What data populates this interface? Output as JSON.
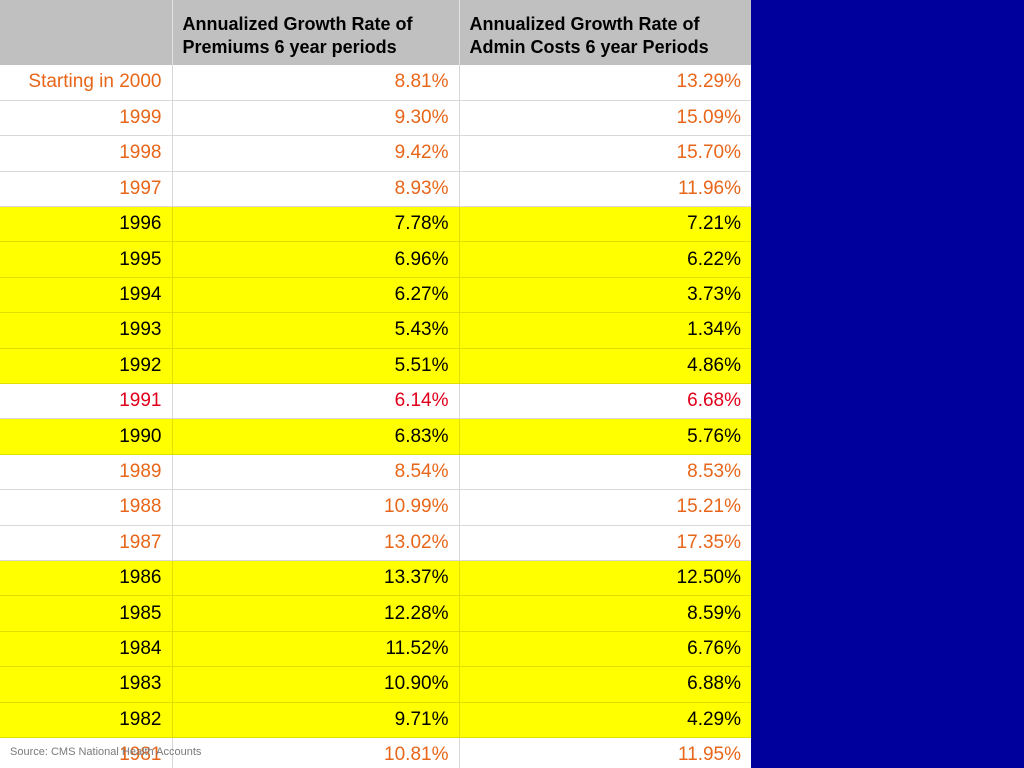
{
  "table": {
    "headers": [
      "",
      "Annualized Growth Rate of Premiums 6 year periods",
      "Annualized Growth Rate of Admin Costs 6 year Periods"
    ],
    "rows": [
      {
        "period": "Starting in 2000",
        "premiums": "8.81%",
        "admin": "13.29%",
        "style": "orange"
      },
      {
        "period": "1999",
        "premiums": "9.30%",
        "admin": "15.09%",
        "style": "orange"
      },
      {
        "period": "1998",
        "premiums": "9.42%",
        "admin": "15.70%",
        "style": "orange"
      },
      {
        "period": "1997",
        "premiums": "8.93%",
        "admin": "11.96%",
        "style": "orange"
      },
      {
        "period": "1996",
        "premiums": "7.78%",
        "admin": "7.21%",
        "style": "yellow"
      },
      {
        "period": "1995",
        "premiums": "6.96%",
        "admin": "6.22%",
        "style": "yellow"
      },
      {
        "period": "1994",
        "premiums": "6.27%",
        "admin": "3.73%",
        "style": "yellow"
      },
      {
        "period": "1993",
        "premiums": "5.43%",
        "admin": "1.34%",
        "style": "yellow"
      },
      {
        "period": "1992",
        "premiums": "5.51%",
        "admin": "4.86%",
        "style": "yellow"
      },
      {
        "period": "1991",
        "premiums": "6.14%",
        "admin": "6.68%",
        "style": "red"
      },
      {
        "period": "1990",
        "premiums": "6.83%",
        "admin": "5.76%",
        "style": "yellow"
      },
      {
        "period": "1989",
        "premiums": "8.54%",
        "admin": "8.53%",
        "style": "orange"
      },
      {
        "period": "1988",
        "premiums": "10.99%",
        "admin": "15.21%",
        "style": "orange"
      },
      {
        "period": "1987",
        "premiums": "13.02%",
        "admin": "17.35%",
        "style": "orange"
      },
      {
        "period": "1986",
        "premiums": "13.37%",
        "admin": "12.50%",
        "style": "yellow"
      },
      {
        "period": "1985",
        "premiums": "12.28%",
        "admin": "8.59%",
        "style": "yellow"
      },
      {
        "period": "1984",
        "premiums": "11.52%",
        "admin": "6.76%",
        "style": "yellow"
      },
      {
        "period": "1983",
        "premiums": "10.90%",
        "admin": "6.88%",
        "style": "yellow"
      },
      {
        "period": "1982",
        "premiums": "9.71%",
        "admin": "4.29%",
        "style": "yellow"
      },
      {
        "period": "1981",
        "premiums": "10.81%",
        "admin": "11.95%",
        "style": "orange"
      }
    ]
  },
  "source": "Source: CMS National Health Accounts",
  "colors": {
    "background": "#00009c",
    "header": "#c0c0c0",
    "highlight": "#ffff00",
    "orange_text": "#e8661a",
    "red_text": "#e0001b"
  }
}
